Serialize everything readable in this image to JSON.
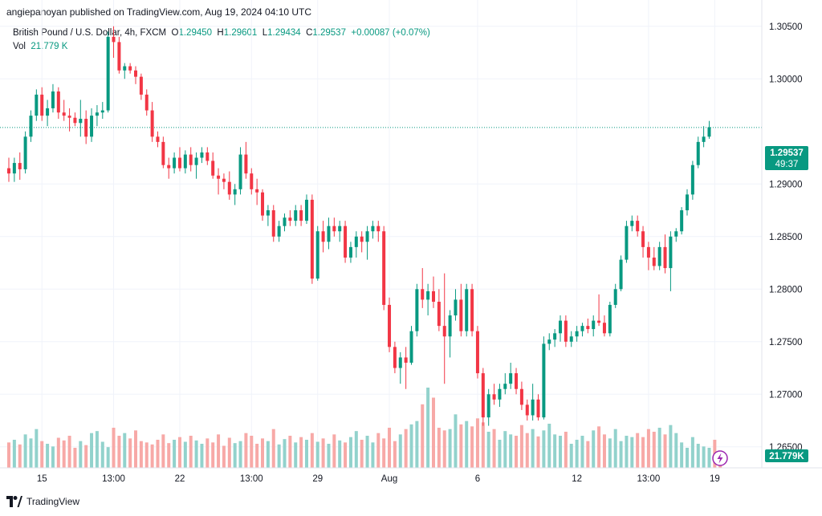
{
  "header": {
    "publisher_line": "angiepanoyan published on TradingView.com, Aug 19, 2024 04:10 UTC"
  },
  "legend": {
    "symbol": "British Pound / U.S. Dollar, 4h, FXCM",
    "o_label": "O",
    "o_value": "1.29450",
    "h_label": "H",
    "h_value": "1.29601",
    "l_label": "L",
    "l_value": "1.29434",
    "c_label": "C",
    "c_value": "1.29537",
    "change": "+0.00087 (+0.07%)",
    "vol_label": "Vol",
    "vol_value": "21.779 K"
  },
  "footer": {
    "brand": "TradingView"
  },
  "colors": {
    "up": "#089981",
    "down": "#f23645",
    "vol_up": "#92d2cc",
    "vol_down": "#f7a9a7",
    "grid": "#f0f3fa",
    "axis_text": "#131722",
    "last_price_line": "#089981"
  },
  "chart_data": {
    "type": "candlestick",
    "title": "British Pound / U.S. Dollar, 4h, FXCM",
    "ylim": [
      1.263,
      1.3075
    ],
    "y_ticks": [
      "1.30500",
      "1.30000",
      "1.29000",
      "1.28500",
      "1.28000",
      "1.27500",
      "1.27000",
      "1.26500"
    ],
    "x_ticks": [
      {
        "label": "15",
        "index": 6
      },
      {
        "label": "13:00",
        "index": 19
      },
      {
        "label": "22",
        "index": 31
      },
      {
        "label": "13:00",
        "index": 44
      },
      {
        "label": "29",
        "index": 56
      },
      {
        "label": "Aug",
        "index": 69
      },
      {
        "label": "6",
        "index": 85
      },
      {
        "label": "12",
        "index": 103
      },
      {
        "label": "13:00",
        "index": 116
      },
      {
        "label": "19",
        "index": 128
      }
    ],
    "last_price": {
      "label": "1.29537",
      "countdown": "49:37",
      "value": 1.29537
    },
    "last_volume": {
      "label": "21.779K"
    },
    "candles": [
      [
        1.2915,
        1.2925,
        1.2902,
        1.291
      ],
      [
        1.291,
        1.2925,
        1.2902,
        1.292
      ],
      [
        1.292,
        1.293,
        1.2904,
        1.2914
      ],
      [
        1.2914,
        1.295,
        1.291,
        1.2945
      ],
      [
        1.2945,
        1.297,
        1.294,
        1.2965
      ],
      [
        1.2965,
        1.299,
        1.296,
        1.2985
      ],
      [
        1.2985,
        1.2992,
        1.296,
        1.2965
      ],
      [
        1.2965,
        1.298,
        1.2955,
        1.2972
      ],
      [
        1.2972,
        1.2995,
        1.2968,
        1.2988
      ],
      [
        1.2988,
        1.2992,
        1.2962,
        1.2968
      ],
      [
        1.2968,
        1.298,
        1.296,
        1.2965
      ],
      [
        1.2965,
        1.2972,
        1.295,
        1.2963
      ],
      [
        1.2963,
        1.2968,
        1.2955,
        1.2958
      ],
      [
        1.2958,
        1.298,
        1.2945,
        1.2962
      ],
      [
        1.2962,
        1.297,
        1.2938,
        1.2945
      ],
      [
        1.2945,
        1.2972,
        1.294,
        1.2965
      ],
      [
        1.2965,
        1.2975,
        1.2955,
        1.2968
      ],
      [
        1.2968,
        1.2978,
        1.2962,
        1.297
      ],
      [
        1.297,
        1.3045,
        1.2968,
        1.304
      ],
      [
        1.304,
        1.305,
        1.302,
        1.3035
      ],
      [
        1.3035,
        1.304,
        1.3005,
        1.3008
      ],
      [
        1.3008,
        1.3015,
        1.3,
        1.3012
      ],
      [
        1.3012,
        1.3015,
        1.3005,
        1.3008
      ],
      [
        1.3008,
        1.3012,
        1.2995,
        1.3002
      ],
      [
        1.3002,
        1.3005,
        1.298,
        1.2985
      ],
      [
        1.2985,
        1.299,
        1.2965,
        1.297
      ],
      [
        1.297,
        1.2978,
        1.294,
        1.2945
      ],
      [
        1.2945,
        1.295,
        1.2935,
        1.294
      ],
      [
        1.294,
        1.2945,
        1.2915,
        1.2918
      ],
      [
        1.2918,
        1.2925,
        1.2905,
        1.2915
      ],
      [
        1.2915,
        1.293,
        1.291,
        1.2925
      ],
      [
        1.2925,
        1.2935,
        1.2912,
        1.2915
      ],
      [
        1.2915,
        1.2932,
        1.291,
        1.2928
      ],
      [
        1.2928,
        1.2935,
        1.2912,
        1.2918
      ],
      [
        1.2918,
        1.293,
        1.2905,
        1.2925
      ],
      [
        1.2925,
        1.2935,
        1.292,
        1.293
      ],
      [
        1.293,
        1.2935,
        1.2918,
        1.2922
      ],
      [
        1.2922,
        1.293,
        1.2905,
        1.2908
      ],
      [
        1.2908,
        1.2915,
        1.289,
        1.2905
      ],
      [
        1.2905,
        1.291,
        1.2895,
        1.2902
      ],
      [
        1.2902,
        1.2912,
        1.2885,
        1.289
      ],
      [
        1.289,
        1.29,
        1.288,
        1.2895
      ],
      [
        1.2895,
        1.2935,
        1.289,
        1.2928
      ],
      [
        1.2928,
        1.294,
        1.2905,
        1.291
      ],
      [
        1.291,
        1.2915,
        1.289,
        1.2895
      ],
      [
        1.2895,
        1.2905,
        1.288,
        1.2892
      ],
      [
        1.2892,
        1.2895,
        1.2865,
        1.287
      ],
      [
        1.287,
        1.288,
        1.286,
        1.2875
      ],
      [
        1.2875,
        1.288,
        1.2845,
        1.285
      ],
      [
        1.285,
        1.2865,
        1.2845,
        1.286
      ],
      [
        1.286,
        1.2872,
        1.2855,
        1.2868
      ],
      [
        1.2868,
        1.2875,
        1.286,
        1.2865
      ],
      [
        1.2865,
        1.288,
        1.286,
        1.2875
      ],
      [
        1.2875,
        1.288,
        1.286,
        1.2865
      ],
      [
        1.2865,
        1.289,
        1.2862,
        1.2885
      ],
      [
        1.2885,
        1.289,
        1.2805,
        1.281
      ],
      [
        1.281,
        1.286,
        1.2808,
        1.2855
      ],
      [
        1.2855,
        1.2865,
        1.2835,
        1.2845
      ],
      [
        1.2845,
        1.2868,
        1.2838,
        1.286
      ],
      [
        1.286,
        1.2868,
        1.285,
        1.2855
      ],
      [
        1.2855,
        1.2865,
        1.2845,
        1.286
      ],
      [
        1.286,
        1.2865,
        1.2825,
        1.283
      ],
      [
        1.283,
        1.2845,
        1.2825,
        1.284
      ],
      [
        1.284,
        1.2855,
        1.283,
        1.285
      ],
      [
        1.285,
        1.2855,
        1.2835,
        1.2845
      ],
      [
        1.2845,
        1.286,
        1.2828,
        1.2855
      ],
      [
        1.2855,
        1.2865,
        1.2848,
        1.286
      ],
      [
        1.286,
        1.2865,
        1.2845,
        1.2855
      ],
      [
        1.2855,
        1.286,
        1.278,
        1.2785
      ],
      [
        1.2785,
        1.2792,
        1.274,
        1.2745
      ],
      [
        1.2745,
        1.275,
        1.272,
        1.2725
      ],
      [
        1.2725,
        1.274,
        1.271,
        1.2735
      ],
      [
        1.2735,
        1.2745,
        1.2705,
        1.273
      ],
      [
        1.273,
        1.2765,
        1.2728,
        1.276
      ],
      [
        1.276,
        1.2805,
        1.2755,
        1.28
      ],
      [
        1.28,
        1.282,
        1.2782,
        1.279
      ],
      [
        1.279,
        1.2805,
        1.2775,
        1.2798
      ],
      [
        1.2798,
        1.2812,
        1.2782,
        1.2788
      ],
      [
        1.2788,
        1.28,
        1.276,
        1.2765
      ],
      [
        1.2765,
        1.2815,
        1.271,
        1.2755
      ],
      [
        1.2755,
        1.278,
        1.2735,
        1.2775
      ],
      [
        1.2775,
        1.28,
        1.277,
        1.279
      ],
      [
        1.279,
        1.2805,
        1.2755,
        1.276
      ],
      [
        1.276,
        1.2805,
        1.2755,
        1.28
      ],
      [
        1.28,
        1.2805,
        1.2755,
        1.276
      ],
      [
        1.276,
        1.2765,
        1.2715,
        1.272
      ],
      [
        1.272,
        1.2725,
        1.267,
        1.2678
      ],
      [
        1.2678,
        1.2705,
        1.267,
        1.27
      ],
      [
        1.27,
        1.271,
        1.269,
        1.2695
      ],
      [
        1.2695,
        1.271,
        1.2688,
        1.2705
      ],
      [
        1.2705,
        1.272,
        1.27,
        1.271
      ],
      [
        1.271,
        1.273,
        1.2705,
        1.272
      ],
      [
        1.272,
        1.2725,
        1.27,
        1.2705
      ],
      [
        1.2705,
        1.2712,
        1.2685,
        1.269
      ],
      [
        1.269,
        1.2695,
        1.2675,
        1.268
      ],
      [
        1.268,
        1.271,
        1.2675,
        1.2695
      ],
      [
        1.2695,
        1.27,
        1.2675,
        1.2678
      ],
      [
        1.2678,
        1.2755,
        1.2676,
        1.2748
      ],
      [
        1.2748,
        1.2758,
        1.2742,
        1.2752
      ],
      [
        1.2752,
        1.2762,
        1.2745,
        1.2758
      ],
      [
        1.2758,
        1.2775,
        1.275,
        1.277
      ],
      [
        1.277,
        1.2775,
        1.2745,
        1.275
      ],
      [
        1.275,
        1.276,
        1.2745,
        1.2755
      ],
      [
        1.2755,
        1.2765,
        1.275,
        1.276
      ],
      [
        1.276,
        1.2768,
        1.2755,
        1.2765
      ],
      [
        1.2765,
        1.2772,
        1.2758,
        1.2762
      ],
      [
        1.2762,
        1.2775,
        1.2755,
        1.277
      ],
      [
        1.277,
        1.2795,
        1.2765,
        1.2768
      ],
      [
        1.2768,
        1.2775,
        1.2755,
        1.2758
      ],
      [
        1.2758,
        1.2788,
        1.2755,
        1.2785
      ],
      [
        1.2785,
        1.2805,
        1.2782,
        1.28
      ],
      [
        1.28,
        1.2832,
        1.2798,
        1.2828
      ],
      [
        1.2828,
        1.2865,
        1.2825,
        1.286
      ],
      [
        1.286,
        1.287,
        1.2855,
        1.2865
      ],
      [
        1.2865,
        1.287,
        1.285,
        1.2855
      ],
      [
        1.2855,
        1.286,
        1.283,
        1.284
      ],
      [
        1.284,
        1.2845,
        1.2818,
        1.283
      ],
      [
        1.283,
        1.284,
        1.2818,
        1.2822
      ],
      [
        1.2822,
        1.2845,
        1.2818,
        1.284
      ],
      [
        1.284,
        1.2852,
        1.2815,
        1.282
      ],
      [
        1.282,
        1.2855,
        1.2798,
        1.285
      ],
      [
        1.285,
        1.2858,
        1.2845,
        1.2855
      ],
      [
        1.2855,
        1.2878,
        1.2852,
        1.2875
      ],
      [
        1.2875,
        1.2895,
        1.287,
        1.289
      ],
      [
        1.289,
        1.2922,
        1.2885,
        1.2918
      ],
      [
        1.2918,
        1.2945,
        1.2915,
        1.294
      ],
      [
        1.294,
        1.2955,
        1.2935,
        1.2945
      ],
      [
        1.2945,
        1.296,
        1.2943,
        1.2954
      ]
    ],
    "volumes": [
      38,
      42,
      35,
      50,
      44,
      58,
      40,
      36,
      32,
      45,
      41,
      48,
      30,
      40,
      34,
      52,
      55,
      39,
      31,
      60,
      48,
      52,
      44,
      56,
      40,
      38,
      35,
      42,
      50,
      37,
      42,
      46,
      39,
      48,
      41,
      36,
      44,
      38,
      50,
      33,
      45,
      37,
      40,
      52,
      48,
      36,
      44,
      40,
      58,
      35,
      43,
      48,
      38,
      46,
      42,
      52,
      39,
      44,
      36,
      50,
      41,
      38,
      46,
      55,
      42,
      48,
      38,
      52,
      44,
      60,
      40,
      50,
      58,
      65,
      70,
      95,
      120,
      105,
      60,
      56,
      58,
      80,
      65,
      70,
      62,
      74,
      68,
      54,
      58,
      42,
      55,
      50,
      48,
      64,
      52,
      58,
      47,
      56,
      66,
      50,
      48,
      54,
      36,
      42,
      48,
      40,
      56,
      62,
      50,
      44,
      58,
      40,
      48,
      46,
      52,
      46,
      58,
      54,
      60,
      50,
      64,
      52,
      38,
      30,
      46,
      36,
      32,
      30,
      42,
      25
    ]
  }
}
